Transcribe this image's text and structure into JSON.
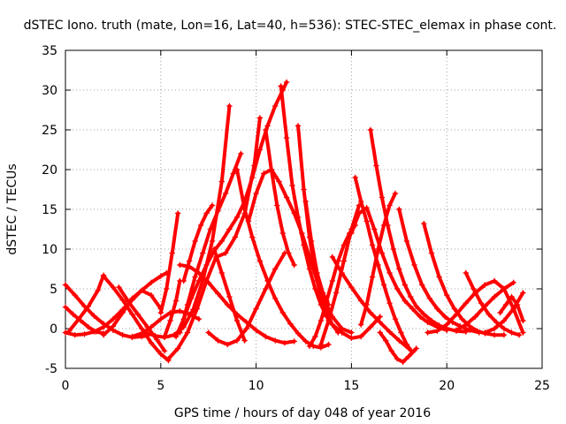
{
  "chart_data": {
    "type": "scatter",
    "title": "dSTEC Iono. truth (mate, Lon=16, Lat=40, h=536): STEC-STEC_elemax in phase cont.",
    "xlabel": "GPS time / hours of day 048 of year 2016",
    "ylabel": "dSTEC  / TECUs",
    "xlim": [
      0,
      25
    ],
    "ylim": [
      -5,
      35
    ],
    "xticks": [
      0,
      5,
      10,
      15,
      20,
      25
    ],
    "yticks": [
      -5,
      0,
      5,
      10,
      15,
      20,
      25,
      30,
      35
    ],
    "grid": true,
    "marker": "+",
    "color": "#ff0000",
    "series": [
      {
        "x": [
          0.0,
          0.5,
          1.0,
          1.5,
          2.0,
          2.5,
          3.0,
          3.5,
          4.0,
          4.3
        ],
        "y": [
          5.5,
          4.2,
          2.8,
          1.6,
          0.6,
          -0.2,
          -0.8,
          -1.1,
          -1.0,
          -0.9
        ]
      },
      {
        "x": [
          0.0,
          0.4,
          0.8,
          1.2,
          1.6,
          2.0
        ],
        "y": [
          2.7,
          1.8,
          1.0,
          0.2,
          -0.4,
          -0.6
        ]
      },
      {
        "x": [
          0.0,
          0.5,
          1.0,
          1.5,
          2.0,
          2.5,
          3.0,
          3.5,
          4.0,
          4.5,
          5.0,
          5.3
        ],
        "y": [
          -0.5,
          -0.8,
          -0.7,
          -0.4,
          0.2,
          1.2,
          2.4,
          3.6,
          4.8,
          5.8,
          6.6,
          7.0
        ]
      },
      {
        "x": [
          0.2,
          0.7,
          1.2,
          1.7,
          2.0
        ],
        "y": [
          -0.3,
          1.2,
          2.8,
          4.8,
          6.7
        ]
      },
      {
        "x": [
          2.0,
          2.5,
          3.0,
          3.5,
          4.0,
          4.5,
          5.0,
          5.4
        ],
        "y": [
          6.6,
          5.2,
          3.6,
          1.8,
          0.0,
          -1.8,
          -3.2,
          -4.0
        ]
      },
      {
        "x": [
          2.0,
          2.5,
          3.0,
          3.5,
          4.0,
          4.5,
          5.0
        ],
        "y": [
          -0.8,
          0.3,
          2.0,
          3.8,
          4.8,
          4.2,
          2.5
        ]
      },
      {
        "x": [
          2.8,
          3.3,
          3.8,
          4.3,
          4.8,
          5.2
        ],
        "y": [
          5.2,
          3.4,
          1.8,
          0.2,
          -1.4,
          -2.8
        ]
      },
      {
        "x": [
          3.5,
          4.0,
          4.5,
          5.0,
          5.5,
          6.0,
          6.5,
          7.0
        ],
        "y": [
          -1.0,
          -0.6,
          0.2,
          1.2,
          2.0,
          2.2,
          1.8,
          1.2
        ]
      },
      {
        "x": [
          4.2,
          4.7,
          5.2,
          5.7,
          6.2,
          6.7,
          7.2,
          7.7,
          8.2,
          8.6
        ],
        "y": [
          -0.5,
          -0.9,
          -1.1,
          -0.8,
          0.2,
          2.4,
          6.0,
          11.0,
          18.5,
          28.0
        ]
      },
      {
        "x": [
          5.4,
          5.9,
          6.4,
          6.9,
          7.4,
          7.9,
          8.4,
          8.9,
          9.4,
          9.9,
          10.2
        ],
        "y": [
          -3.8,
          -2.5,
          -0.5,
          2.5,
          6.0,
          9.0,
          9.5,
          11.5,
          14.5,
          20.5,
          26.5
        ]
      },
      {
        "x": [
          5.0,
          5.3,
          5.6,
          5.9
        ],
        "y": [
          2.0,
          5.0,
          9.5,
          14.5
        ]
      },
      {
        "x": [
          5.2,
          5.5,
          5.8,
          6.0
        ],
        "y": [
          -1.0,
          1.0,
          3.5,
          6.0
        ]
      },
      {
        "x": [
          5.8,
          6.2,
          6.6,
          7.0,
          7.4,
          7.8,
          8.2,
          8.6,
          9.0,
          9.4,
          9.8,
          10.2,
          10.6,
          11.0,
          11.4,
          11.6
        ],
        "y": [
          -1.0,
          1.2,
          3.8,
          6.0,
          8.0,
          9.8,
          11.0,
          12.5,
          14.0,
          16.0,
          19.0,
          22.5,
          25.5,
          28.0,
          30.0,
          31.0
        ]
      },
      {
        "x": [
          6.0,
          6.4,
          6.8,
          7.2,
          7.6,
          8.0,
          8.4,
          8.8,
          9.2
        ],
        "y": [
          -0.5,
          3.0,
          6.5,
          9.5,
          12.5,
          14.8,
          17.0,
          19.5,
          22.0
        ]
      },
      {
        "x": [
          6.2,
          6.5,
          6.8,
          7.1,
          7.4,
          7.7
        ],
        "y": [
          6.0,
          8.5,
          11.0,
          13.0,
          14.5,
          15.5
        ]
      },
      {
        "x": [
          6.0,
          6.5,
          7.0,
          7.5,
          8.0,
          8.5,
          9.0,
          9.5,
          10.0,
          10.5,
          11.0,
          11.5,
          12.0
        ],
        "y": [
          8.0,
          7.8,
          7.0,
          5.8,
          4.4,
          3.0,
          1.8,
          0.8,
          -0.2,
          -1.0,
          -1.5,
          -1.8,
          -1.6
        ]
      },
      {
        "x": [
          7.8,
          8.2,
          8.6,
          9.0,
          9.4
        ],
        "y": [
          10.0,
          7.0,
          4.0,
          1.0,
          -1.5
        ]
      },
      {
        "x": [
          7.5,
          8.0,
          8.5,
          9.0,
          9.5,
          10.0,
          10.5,
          11.0,
          11.5
        ],
        "y": [
          -0.5,
          -1.5,
          -2.0,
          -1.5,
          0.0,
          2.5,
          5.0,
          7.5,
          9.5
        ]
      },
      {
        "x": [
          9.0,
          9.4,
          9.8,
          10.2,
          10.6,
          11.0,
          11.4,
          11.8,
          12.2,
          12.6,
          13.0,
          13.4,
          13.8
        ],
        "y": [
          20.0,
          15.0,
          11.5,
          8.5,
          6.0,
          3.8,
          2.0,
          0.6,
          -0.6,
          -1.6,
          -2.2,
          -2.4,
          -2.0
        ]
      },
      {
        "x": [
          9.6,
          10.0,
          10.4,
          10.8,
          11.2,
          11.6,
          12.0,
          12.4,
          12.8,
          13.2,
          13.6,
          14.0,
          14.5,
          15.0
        ],
        "y": [
          13.5,
          17.0,
          19.5,
          20.0,
          18.5,
          16.5,
          14.5,
          12.0,
          9.0,
          6.0,
          3.5,
          1.5,
          0.0,
          -0.5
        ]
      },
      {
        "x": [
          10.5,
          10.8,
          11.1,
          11.4,
          11.7,
          12.0
        ],
        "y": [
          25.0,
          20.0,
          15.5,
          12.0,
          9.5,
          8.0
        ]
      },
      {
        "x": [
          11.3,
          11.6,
          11.9,
          12.2,
          12.5,
          12.8,
          13.1,
          13.4,
          13.7,
          14.0,
          14.5,
          15.0,
          15.5,
          16.0,
          16.5
        ],
        "y": [
          30.5,
          24.0,
          18.0,
          14.0,
          10.5,
          7.5,
          5.0,
          3.0,
          1.5,
          0.5,
          -0.5,
          -1.2,
          -1.0,
          0.2,
          1.5
        ]
      },
      {
        "x": [
          12.2,
          12.5,
          12.8,
          13.1,
          13.4,
          13.7,
          14.0,
          14.3
        ],
        "y": [
          25.5,
          17.5,
          11.5,
          7.0,
          4.0,
          2.0,
          0.5,
          -0.5
        ]
      },
      {
        "x": [
          12.6,
          12.9,
          13.2,
          13.5,
          13.8
        ],
        "y": [
          16.0,
          11.0,
          7.0,
          4.5,
          3.0
        ]
      },
      {
        "x": [
          12.8,
          13.1,
          13.4,
          13.7,
          14.0,
          14.3,
          14.6,
          14.9,
          15.2
        ],
        "y": [
          -2.2,
          -1.0,
          1.0,
          3.5,
          6.0,
          8.5,
          10.5,
          12.0,
          13.0
        ]
      },
      {
        "x": [
          13.4,
          13.8,
          14.2,
          14.6,
          15.0,
          15.4
        ],
        "y": [
          -2.0,
          1.0,
          4.5,
          8.5,
          12.5,
          15.5
        ]
      },
      {
        "x": [
          14.0,
          14.5,
          15.0,
          15.5,
          16.0,
          16.5,
          17.0,
          17.5,
          18.0
        ],
        "y": [
          9.0,
          7.0,
          5.2,
          3.5,
          2.0,
          0.8,
          -0.4,
          -1.5,
          -2.5
        ]
      },
      {
        "x": [
          15.0,
          15.4,
          15.8,
          16.2,
          16.6,
          17.0,
          17.4,
          17.8,
          18.2,
          18.6,
          19.0,
          19.5,
          20.0
        ],
        "y": [
          12.0,
          14.5,
          15.2,
          12.5,
          9.5,
          7.0,
          5.0,
          3.5,
          2.5,
          1.5,
          0.8,
          0.2,
          -0.2
        ]
      },
      {
        "x": [
          15.2,
          15.5,
          15.8,
          16.1,
          16.4,
          16.7,
          17.0,
          17.3,
          17.6,
          17.9,
          18.2
        ],
        "y": [
          19.0,
          16.0,
          13.5,
          10.5,
          8.0,
          5.5,
          3.2,
          1.2,
          -0.5,
          -2.0,
          -3.0
        ]
      },
      {
        "x": [
          15.5,
          15.8,
          16.1,
          16.4,
          16.7,
          17.0,
          17.3
        ],
        "y": [
          0.5,
          3.0,
          6.5,
          10.0,
          13.0,
          15.5,
          17.0
        ]
      },
      {
        "x": [
          16.0,
          16.3,
          16.6,
          16.9,
          17.2,
          17.5,
          17.8,
          18.1,
          18.4,
          18.8,
          19.2,
          19.6,
          20.0,
          20.5,
          21.0
        ],
        "y": [
          25.0,
          20.5,
          16.5,
          13.0,
          10.0,
          7.5,
          5.5,
          4.0,
          2.8,
          1.8,
          1.0,
          0.4,
          0.0,
          -0.3,
          -0.4
        ]
      },
      {
        "x": [
          16.5,
          16.8,
          17.1,
          17.4,
          17.7,
          18.0,
          18.4
        ],
        "y": [
          -0.5,
          -1.5,
          -2.8,
          -3.8,
          -4.2,
          -3.5,
          -2.5
        ]
      },
      {
        "x": [
          17.5,
          17.9,
          18.3,
          18.7,
          19.1,
          19.5,
          19.9,
          20.3,
          20.7,
          21.2,
          21.7
        ],
        "y": [
          15.0,
          11.0,
          8.0,
          5.5,
          3.8,
          2.5,
          1.5,
          0.8,
          0.3,
          -0.2,
          -0.5
        ]
      },
      {
        "x": [
          18.8,
          19.2,
          19.6,
          20.0,
          20.4,
          20.8,
          21.2,
          21.6,
          22.0,
          22.5,
          23.0
        ],
        "y": [
          13.2,
          9.5,
          6.5,
          4.2,
          2.5,
          1.2,
          0.3,
          -0.3,
          -0.6,
          -0.8,
          -0.8
        ]
      },
      {
        "x": [
          19.0,
          19.5,
          20.0,
          20.5,
          21.0,
          21.5,
          22.0,
          22.5,
          23.0,
          23.5,
          24.0
        ],
        "y": [
          -0.5,
          -0.3,
          0.5,
          1.8,
          3.2,
          4.5,
          5.5,
          6.0,
          5.0,
          2.5,
          -0.5
        ]
      },
      {
        "x": [
          20.5,
          21.0,
          21.5,
          22.0,
          22.5,
          23.0,
          23.5
        ],
        "y": [
          -0.2,
          0.5,
          1.5,
          2.8,
          4.0,
          5.0,
          5.8
        ]
      },
      {
        "x": [
          21.0,
          21.4,
          21.8,
          22.2,
          22.6,
          23.0,
          23.4,
          23.8
        ],
        "y": [
          7.0,
          5.0,
          3.2,
          1.8,
          0.8,
          0.0,
          -0.5,
          -0.8
        ]
      },
      {
        "x": [
          22.0,
          22.5,
          23.0,
          23.5,
          24.0
        ],
        "y": [
          -0.5,
          0.0,
          1.0,
          2.5,
          4.5
        ]
      },
      {
        "x": [
          22.8,
          23.1,
          23.4,
          23.7,
          24.0
        ],
        "y": [
          2.0,
          3.0,
          4.0,
          3.0,
          1.0
        ]
      }
    ]
  }
}
